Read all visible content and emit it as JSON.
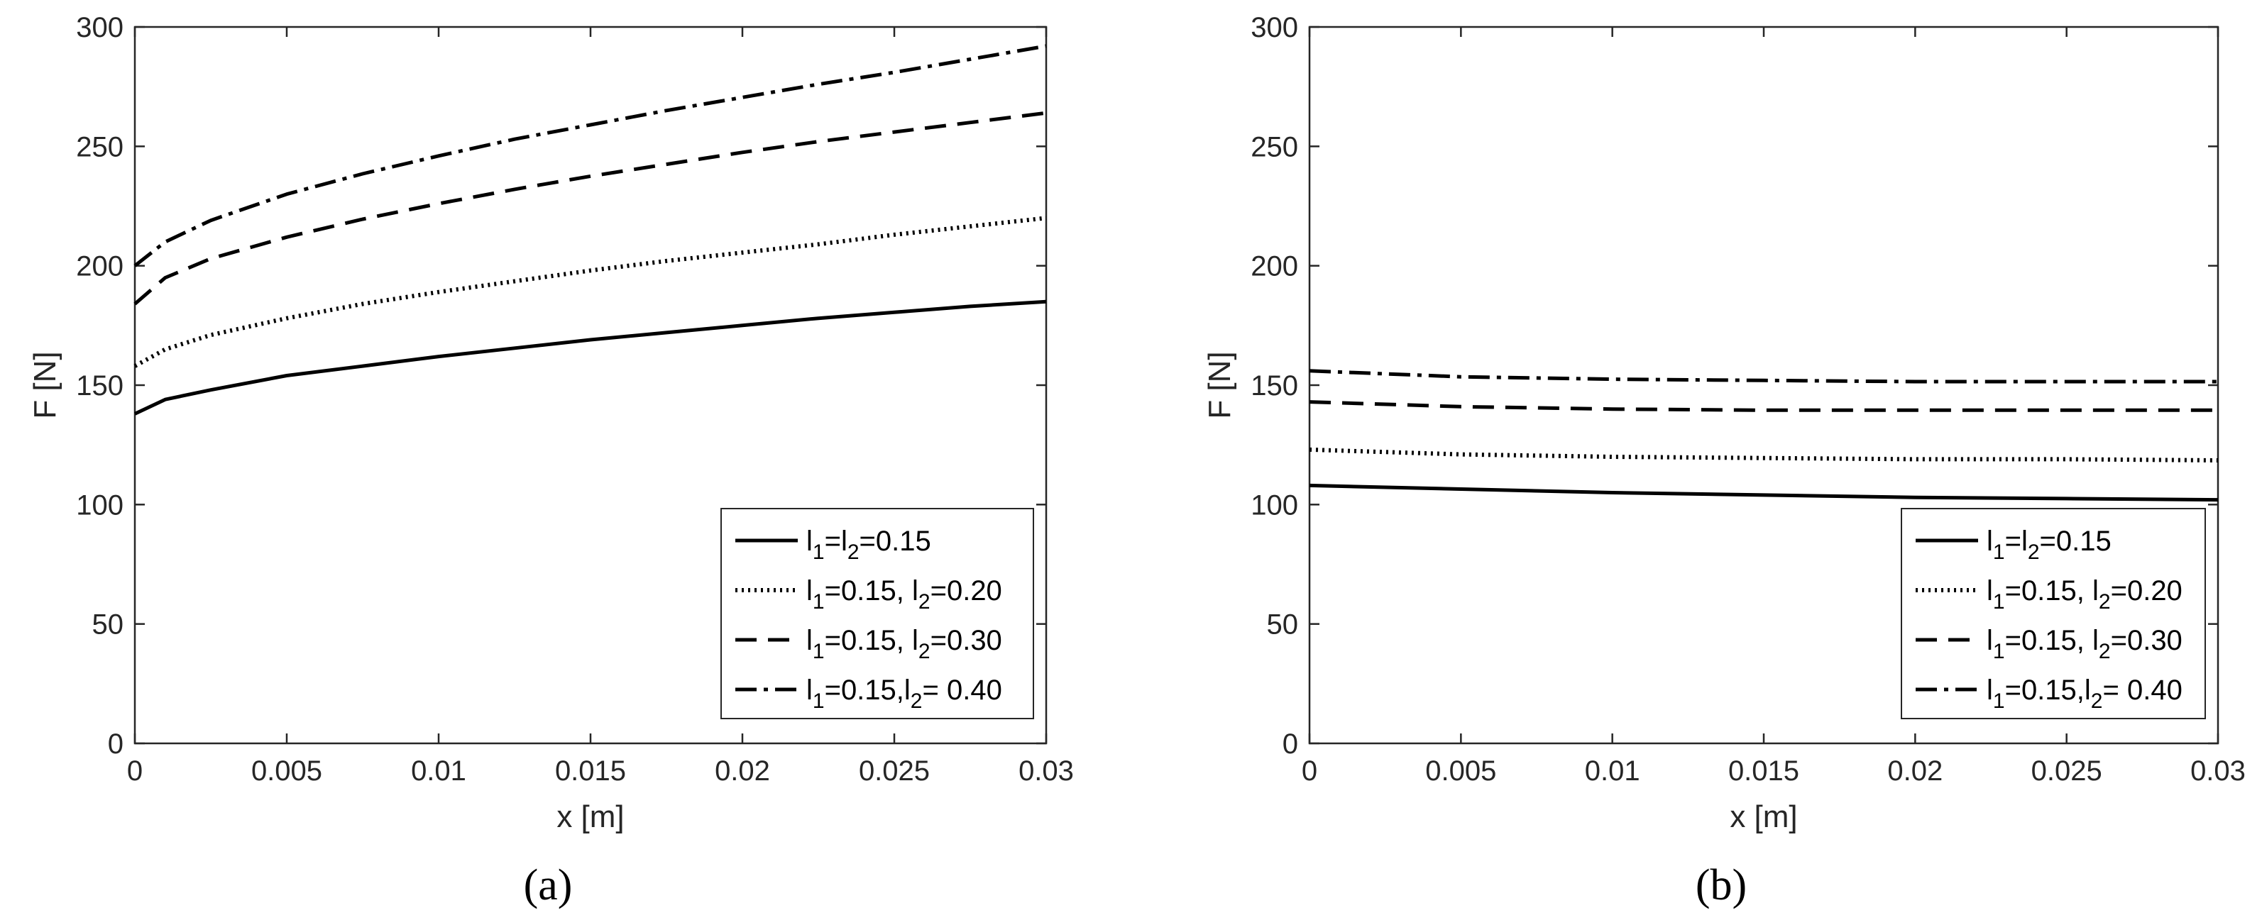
{
  "chart_data": [
    {
      "type": "line",
      "panel_label": "(a)",
      "xlabel": "x [m]",
      "ylabel": "F [N]",
      "xlim": [
        0,
        0.03
      ],
      "ylim": [
        0,
        300
      ],
      "xticks": [
        "0",
        "0.005",
        "0.01",
        "0.015",
        "0.02",
        "0.025",
        "0.03"
      ],
      "yticks": [
        "0",
        "50",
        "100",
        "150",
        "200",
        "250",
        "300"
      ],
      "legend_position": "bottom-right",
      "grid": false,
      "series": [
        {
          "name_parts": [
            "l",
            "1",
            "=l",
            "2",
            "=0.15"
          ],
          "style": "solid",
          "x": [
            0,
            0.001,
            0.0025,
            0.005,
            0.0075,
            0.01,
            0.0125,
            0.015,
            0.0175,
            0.02,
            0.0225,
            0.025,
            0.0275,
            0.03
          ],
          "y": [
            138,
            144,
            148,
            154,
            158,
            162,
            165.5,
            169,
            172,
            175,
            178,
            180.5,
            183,
            185
          ]
        },
        {
          "name_parts": [
            "l",
            "1",
            "=0.15, l",
            "2",
            "=0.20"
          ],
          "style": "dotted",
          "x": [
            0,
            0.001,
            0.0025,
            0.005,
            0.0075,
            0.01,
            0.0125,
            0.015,
            0.0175,
            0.02,
            0.0225,
            0.025,
            0.0275,
            0.03
          ],
          "y": [
            158,
            165,
            171,
            178,
            184,
            189,
            193.5,
            198,
            202,
            205.5,
            209,
            213,
            216.5,
            220
          ]
        },
        {
          "name_parts": [
            "l",
            "1",
            "=0.15, l",
            "2",
            "=0.30"
          ],
          "style": "dashed",
          "x": [
            0,
            0.001,
            0.0025,
            0.005,
            0.0075,
            0.01,
            0.0125,
            0.015,
            0.0175,
            0.02,
            0.0225,
            0.025,
            0.0275,
            0.03
          ],
          "y": [
            184,
            195,
            203,
            212,
            219.5,
            226,
            232,
            237.5,
            242.5,
            247.5,
            252,
            256,
            260,
            264
          ]
        },
        {
          "name_parts": [
            "l",
            "1",
            "=0.15,l",
            "2",
            "= 0.40"
          ],
          "style": "dashdot",
          "x": [
            0,
            0.001,
            0.0025,
            0.005,
            0.0075,
            0.01,
            0.0125,
            0.015,
            0.0175,
            0.02,
            0.0225,
            0.025,
            0.0275,
            0.03
          ],
          "y": [
            200,
            210,
            219,
            230,
            238.5,
            246,
            253,
            259,
            265,
            270.5,
            276,
            281,
            286.5,
            292
          ]
        }
      ]
    },
    {
      "type": "line",
      "panel_label": "(b)",
      "xlabel": "x [m]",
      "ylabel": "F [N]",
      "xlim": [
        0,
        0.03
      ],
      "ylim": [
        0,
        300
      ],
      "xticks": [
        "0",
        "0.005",
        "0.01",
        "0.015",
        "0.02",
        "0.025",
        "0.03"
      ],
      "yticks": [
        "0",
        "50",
        "100",
        "150",
        "200",
        "250",
        "300"
      ],
      "legend_position": "bottom-right",
      "grid": false,
      "series": [
        {
          "name_parts": [
            "l",
            "1",
            "=l",
            "2",
            "=0.15"
          ],
          "style": "solid",
          "x": [
            0,
            0.005,
            0.01,
            0.015,
            0.02,
            0.025,
            0.03
          ],
          "y": [
            108,
            106.5,
            105,
            104,
            103,
            102.5,
            102
          ]
        },
        {
          "name_parts": [
            "l",
            "1",
            "=0.15, l",
            "2",
            "=0.20"
          ],
          "style": "dotted",
          "x": [
            0,
            0.005,
            0.01,
            0.015,
            0.02,
            0.025,
            0.03
          ],
          "y": [
            123,
            121,
            120,
            119.5,
            119,
            119,
            118.5
          ]
        },
        {
          "name_parts": [
            "l",
            "1",
            "=0.15, l",
            "2",
            "=0.30"
          ],
          "style": "dashed",
          "x": [
            0,
            0.005,
            0.01,
            0.015,
            0.02,
            0.025,
            0.03
          ],
          "y": [
            143,
            141,
            140,
            139.5,
            139.5,
            139.5,
            139.5
          ]
        },
        {
          "name_parts": [
            "l",
            "1",
            "=0.15,l",
            "2",
            "= 0.40"
          ],
          "style": "dashdot",
          "x": [
            0,
            0.005,
            0.01,
            0.015,
            0.02,
            0.025,
            0.03
          ],
          "y": [
            156,
            153.5,
            152.5,
            152,
            151.5,
            151.5,
            151.5
          ]
        }
      ]
    }
  ]
}
